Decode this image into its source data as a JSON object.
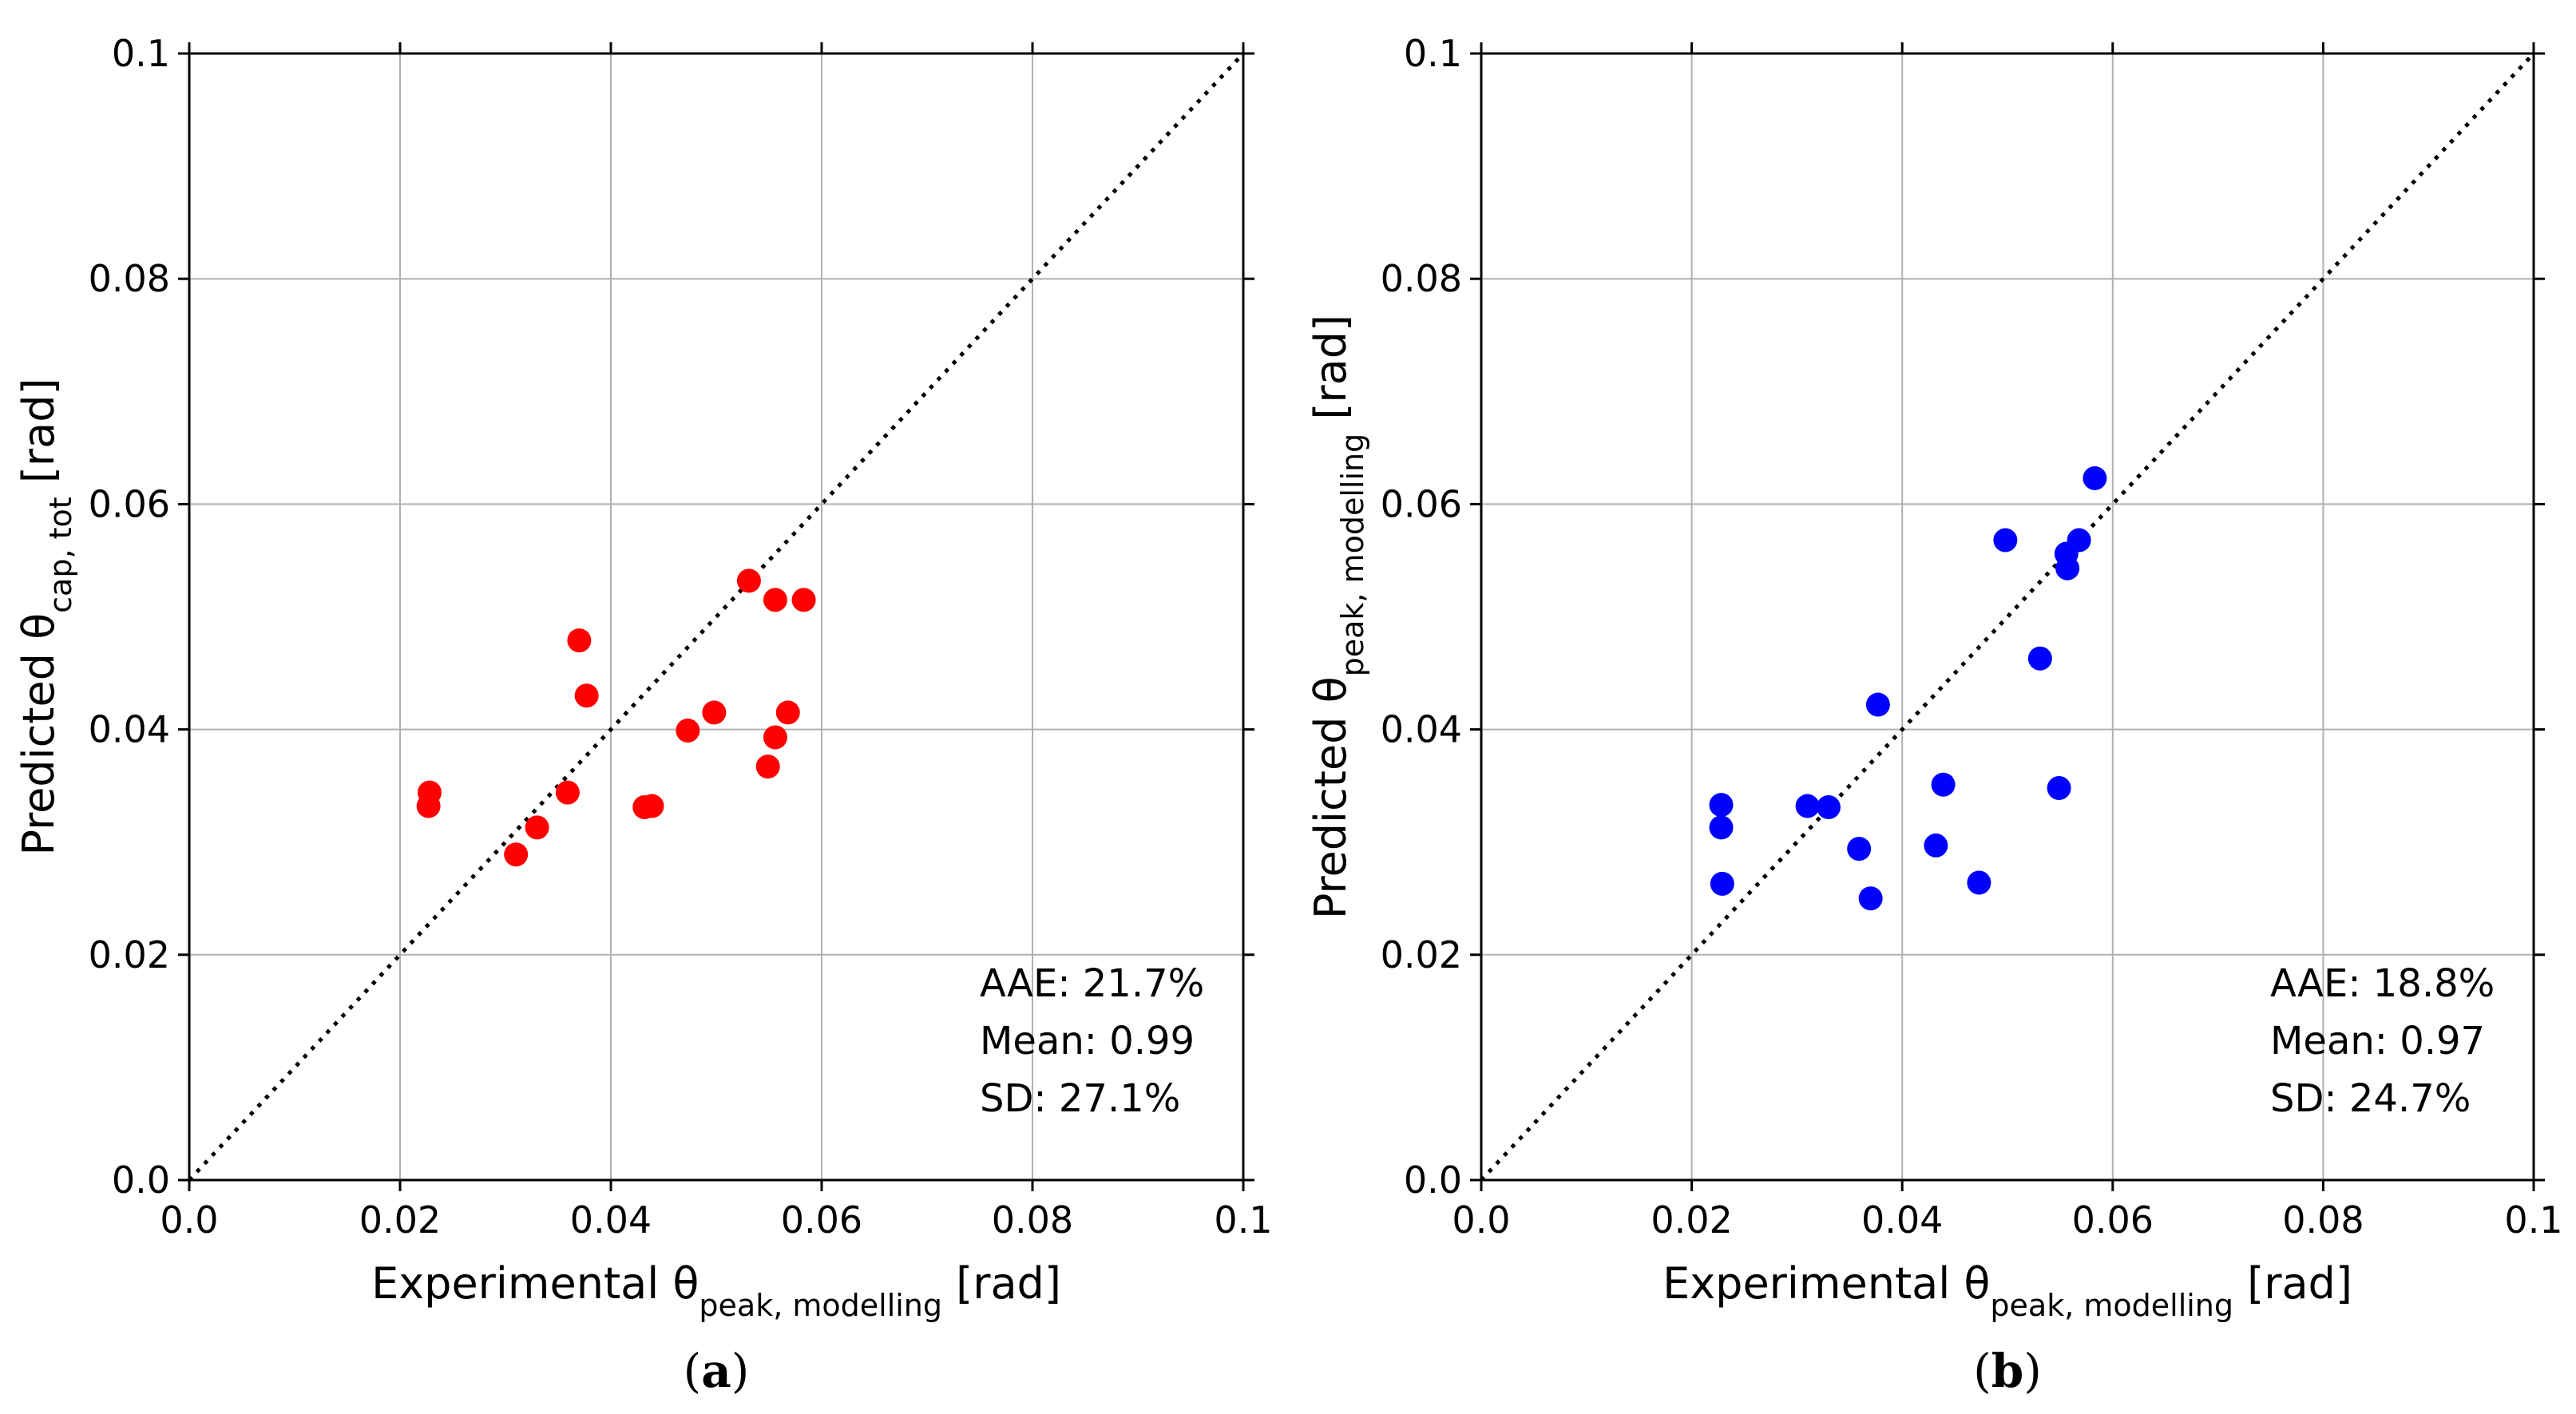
{
  "chart_data": [
    {
      "type": "scatter",
      "panel_caption": {
        "open": "(",
        "letter": "a",
        "close": ")"
      },
      "color": "#ff0000",
      "xlabel": {
        "main": "Experimental θ",
        "sub": "peak, modelling",
        "unit": " [rad]"
      },
      "ylabel": {
        "main": "Predicted θ",
        "sub": "cap, tot",
        "unit": " [rad]"
      },
      "xlim": [
        0,
        0.1
      ],
      "ylim": [
        0,
        0.1
      ],
      "xticks": [
        0,
        0.02,
        0.04,
        0.06,
        0.08,
        0.1
      ],
      "xtick_labels": [
        "0.0",
        "0.02",
        "0.04",
        "0.06",
        "0.08",
        "0.1"
      ],
      "yticks": [
        0,
        0.02,
        0.04,
        0.06,
        0.08,
        0.1
      ],
      "ytick_labels": [
        "0.0",
        "0.02",
        "0.04",
        "0.06",
        "0.08",
        "0.1"
      ],
      "grid": true,
      "reference_line": "y = x (dotted)",
      "stats": [
        "AAE: 21.7%",
        "Mean: 0.99",
        "SD: 27.1%"
      ],
      "points": [
        [
          0.0228,
          0.0344
        ],
        [
          0.0227,
          0.0332
        ],
        [
          0.033,
          0.0313
        ],
        [
          0.031,
          0.0289
        ],
        [
          0.0359,
          0.0344
        ],
        [
          0.037,
          0.0479
        ],
        [
          0.0377,
          0.043
        ],
        [
          0.0432,
          0.0331
        ],
        [
          0.0439,
          0.0332
        ],
        [
          0.0473,
          0.0399
        ],
        [
          0.0498,
          0.0415
        ],
        [
          0.0531,
          0.0532
        ],
        [
          0.0549,
          0.0367
        ],
        [
          0.0556,
          0.0515
        ],
        [
          0.0556,
          0.0393
        ],
        [
          0.0568,
          0.0415
        ],
        [
          0.0583,
          0.0515
        ]
      ]
    },
    {
      "type": "scatter",
      "panel_caption": {
        "open": "(",
        "letter": "b",
        "close": ")"
      },
      "color": "#0000ff",
      "xlabel": {
        "main": "Experimental θ",
        "sub": "peak, modelling",
        "unit": " [rad]"
      },
      "ylabel": {
        "main": "Predicted θ",
        "sub": "peak, modelling",
        "unit": " [rad]"
      },
      "xlim": [
        0,
        0.1
      ],
      "ylim": [
        0,
        0.1
      ],
      "xticks": [
        0,
        0.02,
        0.04,
        0.06,
        0.08,
        0.1
      ],
      "xtick_labels": [
        "0.0",
        "0.02",
        "0.04",
        "0.06",
        "0.08",
        "0.1"
      ],
      "yticks": [
        0,
        0.02,
        0.04,
        0.06,
        0.08,
        0.1
      ],
      "ytick_labels": [
        "0.0",
        "0.02",
        "0.04",
        "0.06",
        "0.08",
        "0.1"
      ],
      "grid": true,
      "reference_line": "y = x (dotted)",
      "stats": [
        "AAE: 18.8%",
        "Mean: 0.97",
        "SD: 24.7%"
      ],
      "points": [
        [
          0.0228,
          0.0333
        ],
        [
          0.0228,
          0.0313
        ],
        [
          0.0229,
          0.0263
        ],
        [
          0.031,
          0.0332
        ],
        [
          0.033,
          0.0331
        ],
        [
          0.0359,
          0.0294
        ],
        [
          0.037,
          0.025
        ],
        [
          0.0377,
          0.0422
        ],
        [
          0.0432,
          0.0297
        ],
        [
          0.0439,
          0.0351
        ],
        [
          0.0473,
          0.0264
        ],
        [
          0.0498,
          0.0568
        ],
        [
          0.0531,
          0.0463
        ],
        [
          0.0549,
          0.0348
        ],
        [
          0.0556,
          0.0556
        ],
        [
          0.0557,
          0.0543
        ],
        [
          0.0568,
          0.0568
        ],
        [
          0.0583,
          0.0623
        ]
      ]
    }
  ]
}
